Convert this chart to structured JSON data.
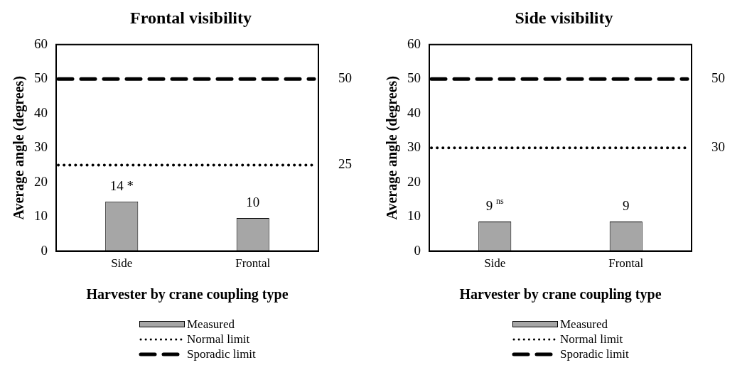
{
  "chart_data": [
    {
      "type": "bar",
      "title": "Frontal visibility",
      "xlabel": "Harvester by crane coupling type",
      "ylabel": "Average angle (degrees)",
      "categories": [
        "Side",
        "Frontal"
      ],
      "series": [
        {
          "name": "Measured",
          "color": "#a6a6a6",
          "values": [
            14.4,
            9.6
          ],
          "value_labels": [
            "14 *",
            "10"
          ]
        }
      ],
      "ylim": [
        0,
        60
      ],
      "yticks": [
        0,
        10,
        20,
        30,
        40,
        50,
        60
      ],
      "y2lim": [
        0,
        60
      ],
      "y2ticks": [
        25,
        50
      ],
      "grid": false,
      "legend": "bottom",
      "ref_lines": [
        {
          "axis": "y",
          "value": 25,
          "label": "Normal limit",
          "color": "#000000",
          "line_style": "dotted"
        },
        {
          "axis": "y",
          "value": 50,
          "label": "Sporadic limit",
          "color": "#000000",
          "line_style": "dashed"
        }
      ]
    },
    {
      "type": "bar",
      "title": "Side visibility",
      "xlabel": "Harvester by crane coupling type",
      "ylabel": "Average angle (degrees)",
      "categories": [
        "Side",
        "Frontal"
      ],
      "series": [
        {
          "name": "Measured",
          "color": "#a6a6a6",
          "values": [
            8.6,
            8.6
          ],
          "value_labels": [
            "9 $^{ns}$",
            "9"
          ]
        }
      ],
      "ylim": [
        0,
        60
      ],
      "yticks": [
        0,
        10,
        20,
        30,
        40,
        50,
        60
      ],
      "y2lim": [
        0,
        60
      ],
      "y2ticks": [
        30,
        50
      ],
      "grid": false,
      "legend": "bottom",
      "ref_lines": [
        {
          "axis": "y",
          "value": 30,
          "label": "Normal limit",
          "color": "#000000",
          "line_style": "dotted"
        },
        {
          "axis": "y",
          "value": 50,
          "label": "Sporadic limit",
          "color": "#000000",
          "line_style": "dashed"
        }
      ]
    }
  ]
}
